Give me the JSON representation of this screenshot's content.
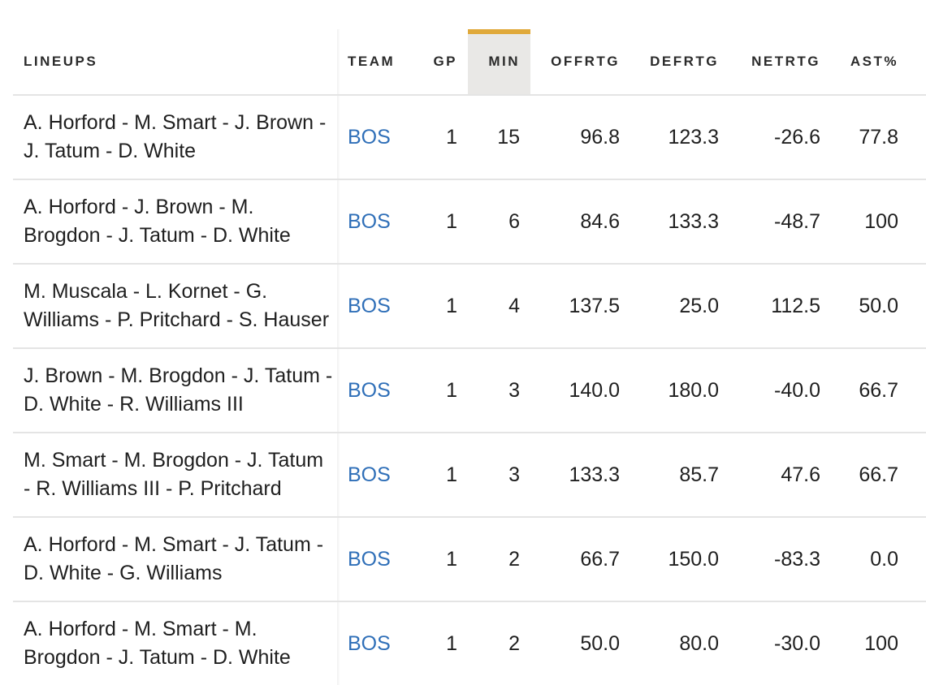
{
  "header": {
    "lineups": "LINEUPS",
    "team": "TEAM",
    "gp": "GP",
    "min": "MIN",
    "offrtg": "OFFRTG",
    "defrtg": "DEFRTG",
    "netrtg": "NETRTG",
    "ast_pct": "AST%"
  },
  "colors": {
    "accent": "#e0a93a",
    "link": "#2f6fb8",
    "sorted_column_bg": "#e9e8e6"
  },
  "rows": [
    {
      "lineup_line1": "A. Horford - M. Smart - J. Brown -",
      "lineup_line2": "J. Tatum - D. White",
      "team": "BOS",
      "gp": "1",
      "min": "15",
      "offrtg": "96.8",
      "defrtg": "123.3",
      "netrtg": "-26.6",
      "ast_pct": "77.8"
    },
    {
      "lineup_line1": "A. Horford - J. Brown - M.",
      "lineup_line2": "Brogdon - J. Tatum - D. White",
      "team": "BOS",
      "gp": "1",
      "min": "6",
      "offrtg": "84.6",
      "defrtg": "133.3",
      "netrtg": "-48.7",
      "ast_pct": "100"
    },
    {
      "lineup_line1": "M. Muscala - L. Kornet - G.",
      "lineup_line2": "Williams - P. Pritchard - S. Hauser",
      "team": "BOS",
      "gp": "1",
      "min": "4",
      "offrtg": "137.5",
      "defrtg": "25.0",
      "netrtg": "112.5",
      "ast_pct": "50.0"
    },
    {
      "lineup_line1": "J. Brown - M. Brogdon - J. Tatum -",
      "lineup_line2": "D. White - R. Williams III",
      "team": "BOS",
      "gp": "1",
      "min": "3",
      "offrtg": "140.0",
      "defrtg": "180.0",
      "netrtg": "-40.0",
      "ast_pct": "66.7"
    },
    {
      "lineup_line1": "M. Smart - M. Brogdon - J. Tatum",
      "lineup_line2": "- R. Williams III - P. Pritchard",
      "team": "BOS",
      "gp": "1",
      "min": "3",
      "offrtg": "133.3",
      "defrtg": "85.7",
      "netrtg": "47.6",
      "ast_pct": "66.7"
    },
    {
      "lineup_line1": "A. Horford - M. Smart - J. Tatum -",
      "lineup_line2": "D. White - G. Williams",
      "team": "BOS",
      "gp": "1",
      "min": "2",
      "offrtg": "66.7",
      "defrtg": "150.0",
      "netrtg": "-83.3",
      "ast_pct": "0.0"
    },
    {
      "lineup_line1": "A. Horford - M. Smart - M.",
      "lineup_line2": "Brogdon - J. Tatum - D. White",
      "team": "BOS",
      "gp": "1",
      "min": "2",
      "offrtg": "50.0",
      "defrtg": "80.0",
      "netrtg": "-30.0",
      "ast_pct": "100"
    }
  ]
}
